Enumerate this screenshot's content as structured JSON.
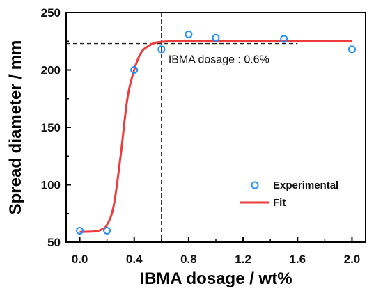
{
  "chart_data": {
    "type": "scatter",
    "xlabel": "IBMA dosage / wt%",
    "ylabel": "Spread diameter / mm",
    "xlim": [
      -0.1,
      2.1
    ],
    "ylim": [
      50,
      250
    ],
    "xticks": [
      "0.0",
      "0.4",
      "0.8",
      "1.2",
      "1.6",
      "2.0"
    ],
    "xtick_values": [
      0.0,
      0.4,
      0.8,
      1.2,
      1.6,
      2.0
    ],
    "yticks": [
      "50",
      "100",
      "150",
      "200",
      "250"
    ],
    "ytick_values": [
      50,
      100,
      150,
      200,
      250
    ],
    "grid": false,
    "legend_position": "lower-right",
    "series": [
      {
        "name": "Experimental",
        "kind": "scatter",
        "marker": "open-circle",
        "color": "#1e90ff",
        "x": [
          0.0,
          0.2,
          0.4,
          0.6,
          0.8,
          1.0,
          1.5,
          2.0
        ],
        "y": [
          60,
          60,
          200,
          218,
          231,
          228,
          227,
          218
        ]
      },
      {
        "name": "Fit",
        "kind": "line",
        "color": "#ee3b3b",
        "x": [
          0.0,
          0.1,
          0.15,
          0.2,
          0.25,
          0.3,
          0.35,
          0.4,
          0.45,
          0.5,
          0.55,
          0.6,
          0.7,
          0.8,
          1.0,
          1.5,
          2.0
        ],
        "y": [
          59,
          59.3,
          60.5,
          65,
          82,
          125,
          175,
          200,
          215,
          220.5,
          223.5,
          224.5,
          225,
          225,
          225,
          225,
          225
        ]
      }
    ],
    "annotations": [
      {
        "text": "IBMA dosage : 0.6%",
        "x": 0.6,
        "y": 223,
        "style": "dashed-crosshair"
      }
    ]
  }
}
